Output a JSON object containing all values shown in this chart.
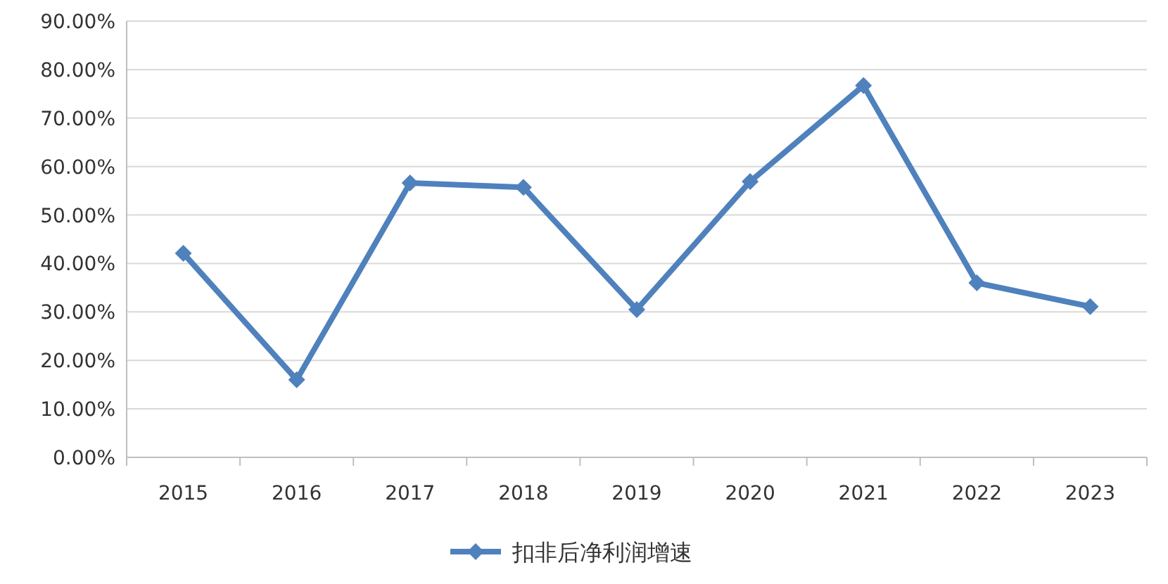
{
  "chart_data": {
    "type": "line",
    "categories": [
      "2015",
      "2016",
      "2017",
      "2018",
      "2019",
      "2020",
      "2021",
      "2022",
      "2023"
    ],
    "series": [
      {
        "name": "扣非后净利润增速",
        "color": "#4f81bd",
        "values": [
          42.1,
          16.0,
          56.6,
          55.7,
          30.5,
          56.9,
          76.7,
          36.0,
          31.1
        ]
      }
    ],
    "ylim": [
      0,
      90
    ],
    "yticks": [
      {
        "value": 0,
        "label": "0.00%"
      },
      {
        "value": 10,
        "label": "10.00%"
      },
      {
        "value": 20,
        "label": "20.00%"
      },
      {
        "value": 30,
        "label": "30.00%"
      },
      {
        "value": 40,
        "label": "40.00%"
      },
      {
        "value": 50,
        "label": "50.00%"
      },
      {
        "value": 60,
        "label": "60.00%"
      },
      {
        "value": 70,
        "label": "70.00%"
      },
      {
        "value": 80,
        "label": "80.00%"
      },
      {
        "value": 90,
        "label": "90.00%"
      }
    ],
    "grid": "y",
    "legend": "bottom",
    "marker": "diamond",
    "line_style": "solid"
  }
}
